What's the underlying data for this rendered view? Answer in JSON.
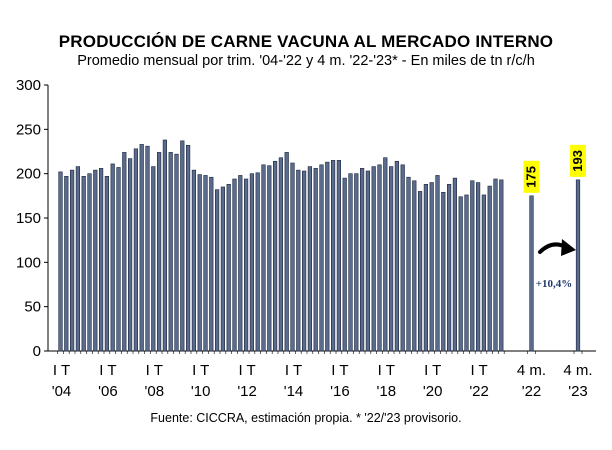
{
  "chart_data": {
    "type": "bar",
    "title": "PRODUCCIÓN DE CARNE VACUNA AL MERCADO INTERNO",
    "subtitle": "Promedio mensual por trim. '04-'22 y 4 m. '22-'23* - En miles de tn r/c/h",
    "source": "Fuente: CICCRA, estimación propia. * '22/'23 provisorio.",
    "ylim": [
      0,
      300
    ],
    "yticks": [
      "0",
      "50",
      "100",
      "150",
      "200",
      "250",
      "300"
    ],
    "grid": false,
    "bar_color": "#5a6b8c",
    "bar_outline": "#1c2740",
    "label_bg": "#ffff00",
    "arrow_color": "#000000",
    "quarterly_values": [
      202,
      197,
      204,
      208,
      197,
      200,
      204,
      206,
      197,
      211,
      207,
      224,
      217,
      228,
      233,
      231,
      208,
      224,
      238,
      224,
      222,
      237,
      232,
      204,
      199,
      198,
      196,
      182,
      185,
      188,
      194,
      198,
      194,
      200,
      201,
      210,
      209,
      214,
      218,
      224,
      212,
      204,
      203,
      208,
      206,
      210,
      213,
      215,
      215,
      195,
      200,
      200,
      206,
      203,
      208,
      210,
      218,
      208,
      214,
      210,
      196,
      192,
      180,
      188,
      190,
      198,
      179,
      188,
      195,
      174,
      176,
      192,
      190,
      176,
      186,
      194,
      193
    ],
    "x_tick_labels": [
      {
        "line1": "I T",
        "line2": "'04",
        "quarter_index": 0
      },
      {
        "line1": "I T",
        "line2": "'06",
        "quarter_index": 8
      },
      {
        "line1": "I T",
        "line2": "'08",
        "quarter_index": 16
      },
      {
        "line1": "I T",
        "line2": "'10",
        "quarter_index": 24
      },
      {
        "line1": "I T",
        "line2": "'12",
        "quarter_index": 32
      },
      {
        "line1": "I T",
        "line2": "'14",
        "quarter_index": 40
      },
      {
        "line1": "I T",
        "line2": "'16",
        "quarter_index": 48
      },
      {
        "line1": "I T",
        "line2": "'18",
        "quarter_index": 56
      },
      {
        "line1": "I T",
        "line2": "'20",
        "quarter_index": 64
      },
      {
        "line1": "I T",
        "line2": "'22",
        "quarter_index": 72
      }
    ],
    "highlight_bars": [
      {
        "line1": "4 m.",
        "line2": "'22",
        "value": 175,
        "label": "175"
      },
      {
        "line1": "4 m.",
        "line2": "'23",
        "value": 193,
        "label": "193"
      }
    ],
    "annotation": "+10,4%"
  }
}
